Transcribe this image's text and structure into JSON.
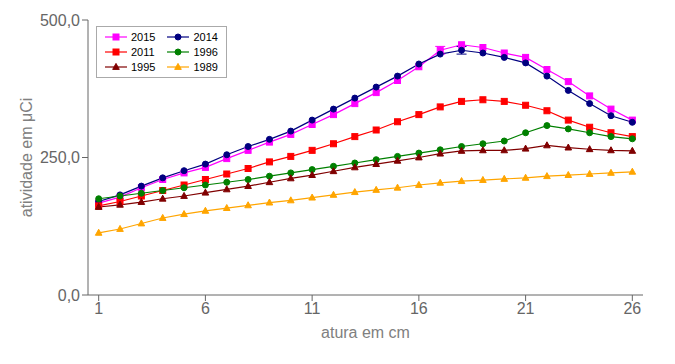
{
  "chart_data": {
    "type": "line",
    "xlabel": "atura em cm",
    "ylabel": "atividade em μCi",
    "x": [
      1,
      2,
      3,
      4,
      5,
      6,
      7,
      8,
      9,
      10,
      11,
      12,
      13,
      14,
      15,
      16,
      17,
      18,
      19,
      20,
      21,
      22,
      23,
      24,
      25,
      26
    ],
    "xlim": [
      0.5,
      26.5
    ],
    "ylim": [
      0,
      500
    ],
    "xticks": [
      1,
      6,
      11,
      16,
      21,
      26
    ],
    "yticks": [
      {
        "value": 0,
        "label": "0,0"
      },
      {
        "value": 250,
        "label": "250,0"
      },
      {
        "value": 500,
        "label": "500,0"
      }
    ],
    "legend": "upper left",
    "series": [
      {
        "name": "2015",
        "color": "#FF00FF",
        "marker": "square",
        "values": [
          167,
          178,
          195,
          210,
          222,
          232,
          248,
          263,
          278,
          292,
          310,
          328,
          348,
          368,
          390,
          415,
          445,
          455,
          450,
          440,
          432,
          410,
          388,
          362,
          338,
          318
        ],
        "errors": [
          null,
          null,
          null,
          null,
          null,
          null,
          null,
          null,
          null,
          null,
          null,
          null,
          null,
          null,
          null,
          null,
          7,
          null,
          null,
          null,
          null,
          null,
          null,
          null,
          null,
          null
        ]
      },
      {
        "name": "2014",
        "color": "#000080",
        "marker": "circle",
        "values": [
          170,
          182,
          198,
          213,
          226,
          238,
          255,
          270,
          283,
          298,
          318,
          338,
          358,
          378,
          398,
          420,
          438,
          445,
          440,
          432,
          422,
          398,
          372,
          348,
          326,
          314
        ],
        "errors": [
          null,
          null,
          null,
          null,
          null,
          null,
          null,
          null,
          null,
          null,
          null,
          null,
          null,
          null,
          null,
          null,
          null,
          7,
          null,
          null,
          null,
          null,
          null,
          null,
          null,
          null
        ]
      },
      {
        "name": "2011",
        "color": "#FF0000",
        "marker": "square",
        "values": [
          162,
          170,
          180,
          190,
          200,
          210,
          220,
          230,
          242,
          252,
          263,
          275,
          288,
          300,
          315,
          328,
          342,
          352,
          355,
          352,
          345,
          335,
          318,
          305,
          295,
          288
        ]
      },
      {
        "name": "1996",
        "color": "#008000",
        "marker": "circle",
        "values": [
          175,
          180,
          185,
          190,
          195,
          200,
          205,
          210,
          216,
          222,
          228,
          234,
          240,
          246,
          252,
          258,
          264,
          270,
          275,
          280,
          295,
          308,
          302,
          295,
          288,
          284
        ]
      },
      {
        "name": "1995",
        "color": "#800000",
        "marker": "triangle",
        "values": [
          160,
          164,
          169,
          175,
          180,
          186,
          192,
          198,
          205,
          212,
          218,
          225,
          232,
          238,
          244,
          250,
          257,
          262,
          263,
          263,
          266,
          272,
          268,
          265,
          263,
          262
        ]
      },
      {
        "name": "1989",
        "color": "#FFA500",
        "marker": "triangle",
        "values": [
          113,
          120,
          130,
          140,
          147,
          153,
          158,
          163,
          168,
          172,
          177,
          182,
          187,
          191,
          195,
          200,
          204,
          207,
          209,
          211,
          213,
          216,
          218,
          220,
          222,
          224
        ]
      }
    ]
  }
}
